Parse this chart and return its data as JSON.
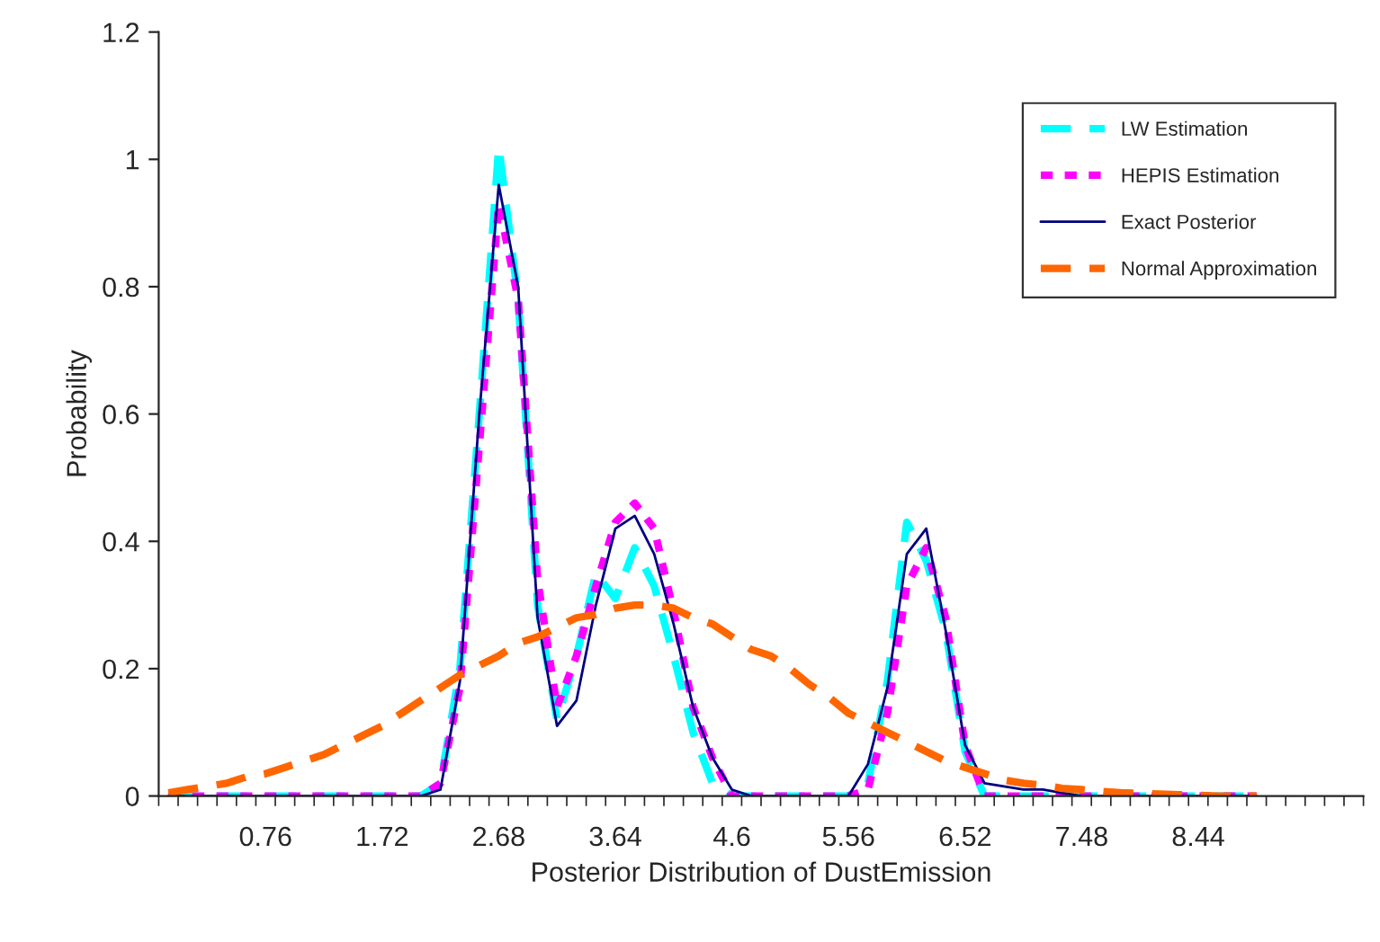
{
  "chart_data": {
    "type": "line",
    "xlabel": "Posterior Distribution of DustEmission",
    "ylabel": "Probability",
    "categories": [
      null,
      null,
      null,
      null,
      null,
      "0.76",
      null,
      null,
      null,
      null,
      null,
      "1.72",
      null,
      null,
      null,
      null,
      null,
      "2.68",
      null,
      null,
      null,
      null,
      null,
      "3.64",
      null,
      null,
      null,
      null,
      null,
      "4.6",
      null,
      null,
      null,
      null,
      null,
      "5.56",
      null,
      null,
      null,
      null,
      null,
      "6.52",
      null,
      null,
      null,
      null,
      null,
      "7.48",
      null,
      null,
      null,
      null,
      null,
      "8.44",
      null,
      null,
      null,
      null,
      null,
      null,
      null,
      null
    ],
    "series": [
      {
        "name": "LW Estimation",
        "color": "#00ffff",
        "line_style": "dashed",
        "values": [
          0,
          0,
          0,
          0,
          0,
          0,
          0,
          0,
          0,
          0,
          0,
          0,
          0,
          0,
          0.02,
          0.2,
          0.6,
          1.02,
          0.78,
          0.3,
          0.12,
          0.22,
          0.35,
          0.31,
          0.39,
          0.33,
          0.22,
          0.1,
          0.02,
          0,
          0,
          0,
          0,
          0,
          0,
          0,
          0.02,
          0.18,
          0.43,
          0.37,
          0.26,
          0.07,
          0,
          0,
          0,
          0,
          0,
          0,
          0,
          0,
          0,
          0,
          0,
          0,
          0,
          0,
          0,
          null,
          null,
          null,
          null,
          null
        ]
      },
      {
        "name": "HEPIS Estimation",
        "color": "#ff00ff",
        "line_style": "dotted",
        "values": [
          0,
          0,
          0,
          0,
          0,
          0,
          0,
          0,
          0,
          0,
          0,
          0,
          0,
          0,
          0.02,
          0.17,
          0.55,
          0.93,
          0.78,
          0.34,
          0.14,
          0.22,
          0.33,
          0.43,
          0.46,
          0.42,
          0.29,
          0.14,
          0.06,
          0,
          0,
          0,
          0,
          0,
          0,
          0,
          0.01,
          0.13,
          0.33,
          0.39,
          0.28,
          0.08,
          0,
          0,
          0,
          0,
          0,
          0,
          0,
          0,
          0,
          0,
          0,
          0,
          0,
          0,
          0,
          null,
          null,
          null,
          null,
          null
        ]
      },
      {
        "name": "Exact Posterior",
        "color": "#000080",
        "line_style": "solid",
        "values": [
          0,
          0,
          0,
          0,
          0,
          0,
          0,
          0,
          0,
          0,
          0,
          0,
          0,
          0,
          0.01,
          0.18,
          0.6,
          0.96,
          0.8,
          0.28,
          0.11,
          0.15,
          0.3,
          0.42,
          0.44,
          0.38,
          0.27,
          0.14,
          0.06,
          0.01,
          0,
          0,
          0,
          0,
          0,
          0,
          0.05,
          0.17,
          0.38,
          0.42,
          0.26,
          0.08,
          0.02,
          0.015,
          0.01,
          0.01,
          0.005,
          0,
          0,
          0,
          0,
          0,
          0,
          0,
          0,
          0,
          0,
          null,
          null,
          null,
          null,
          null
        ]
      },
      {
        "name": "Normal Approximation",
        "color": "#ff6600",
        "line_style": "dashed",
        "values": [
          0.005,
          0.01,
          0.015,
          0.02,
          0.03,
          0.035,
          0.045,
          0.055,
          0.065,
          0.08,
          0.095,
          0.11,
          0.13,
          0.15,
          0.17,
          0.19,
          0.205,
          0.22,
          0.24,
          0.25,
          0.265,
          0.28,
          0.285,
          0.295,
          0.3,
          0.3,
          0.295,
          0.28,
          0.27,
          0.25,
          0.23,
          0.22,
          0.2,
          0.175,
          0.155,
          0.13,
          0.115,
          0.1,
          0.085,
          0.07,
          0.055,
          0.045,
          0.035,
          0.025,
          0.02,
          0.017,
          0.012,
          0.01,
          0.007,
          0.005,
          0.004,
          0.003,
          0.002,
          0.001,
          0,
          0,
          0,
          null,
          null,
          null,
          null,
          null
        ]
      }
    ],
    "ylim": [
      0,
      1.2
    ],
    "yticks": [
      0,
      {
        "value": 0.2,
        "label": "0.2"
      },
      {
        "value": 0.4,
        "label": "0.4"
      },
      {
        "value": 0.6,
        "label": "0.6"
      },
      {
        "value": 0.8,
        "label": "0.8"
      },
      1,
      {
        "value": 1.2,
        "label": "1.2"
      }
    ],
    "grid": false,
    "legend": "top right"
  }
}
